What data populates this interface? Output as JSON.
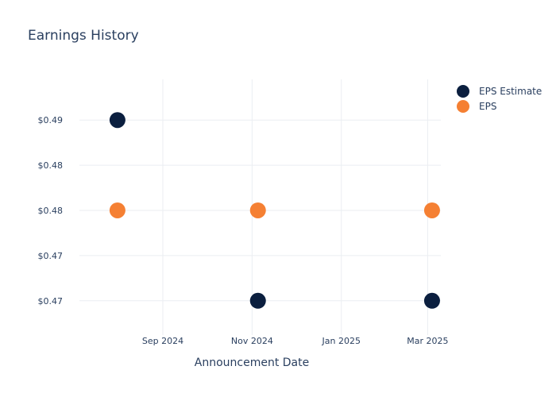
{
  "chart_data": {
    "type": "scatter",
    "title": "Earnings History",
    "xlabel": "Announcement Date",
    "ylabel": "",
    "x_ticks": [
      {
        "date": "2024-09-01",
        "label": "Sep 2024"
      },
      {
        "date": "2024-11-01",
        "label": "Nov 2024"
      },
      {
        "date": "2025-01-01",
        "label": "Jan 2025"
      },
      {
        "date": "2025-03-01",
        "label": "Mar 2025"
      }
    ],
    "xlim": [
      "2024-07-06",
      "2025-03-10"
    ],
    "y_ticks": [
      {
        "value": 0.49,
        "label": "$0.49"
      },
      {
        "value": 0.485,
        "label": "$0.48"
      },
      {
        "value": 0.48,
        "label": "$0.48"
      },
      {
        "value": 0.475,
        "label": "$0.47"
      },
      {
        "value": 0.47,
        "label": "$0.47"
      }
    ],
    "ylim": [
      0.4662,
      0.4945
    ],
    "grid": true,
    "legend_position": "top-right",
    "series": [
      {
        "name": "EPS Estimate",
        "color": "#0b1f3f",
        "points": [
          {
            "x": "2024-08-01",
            "y": 0.49
          },
          {
            "x": "2024-11-05",
            "y": 0.47
          },
          {
            "x": "2025-03-04",
            "y": 0.47
          }
        ]
      },
      {
        "name": "EPS",
        "color": "#f58033",
        "points": [
          {
            "x": "2024-08-01",
            "y": 0.48
          },
          {
            "x": "2024-11-05",
            "y": 0.48
          },
          {
            "x": "2025-03-04",
            "y": 0.48
          }
        ]
      }
    ]
  }
}
